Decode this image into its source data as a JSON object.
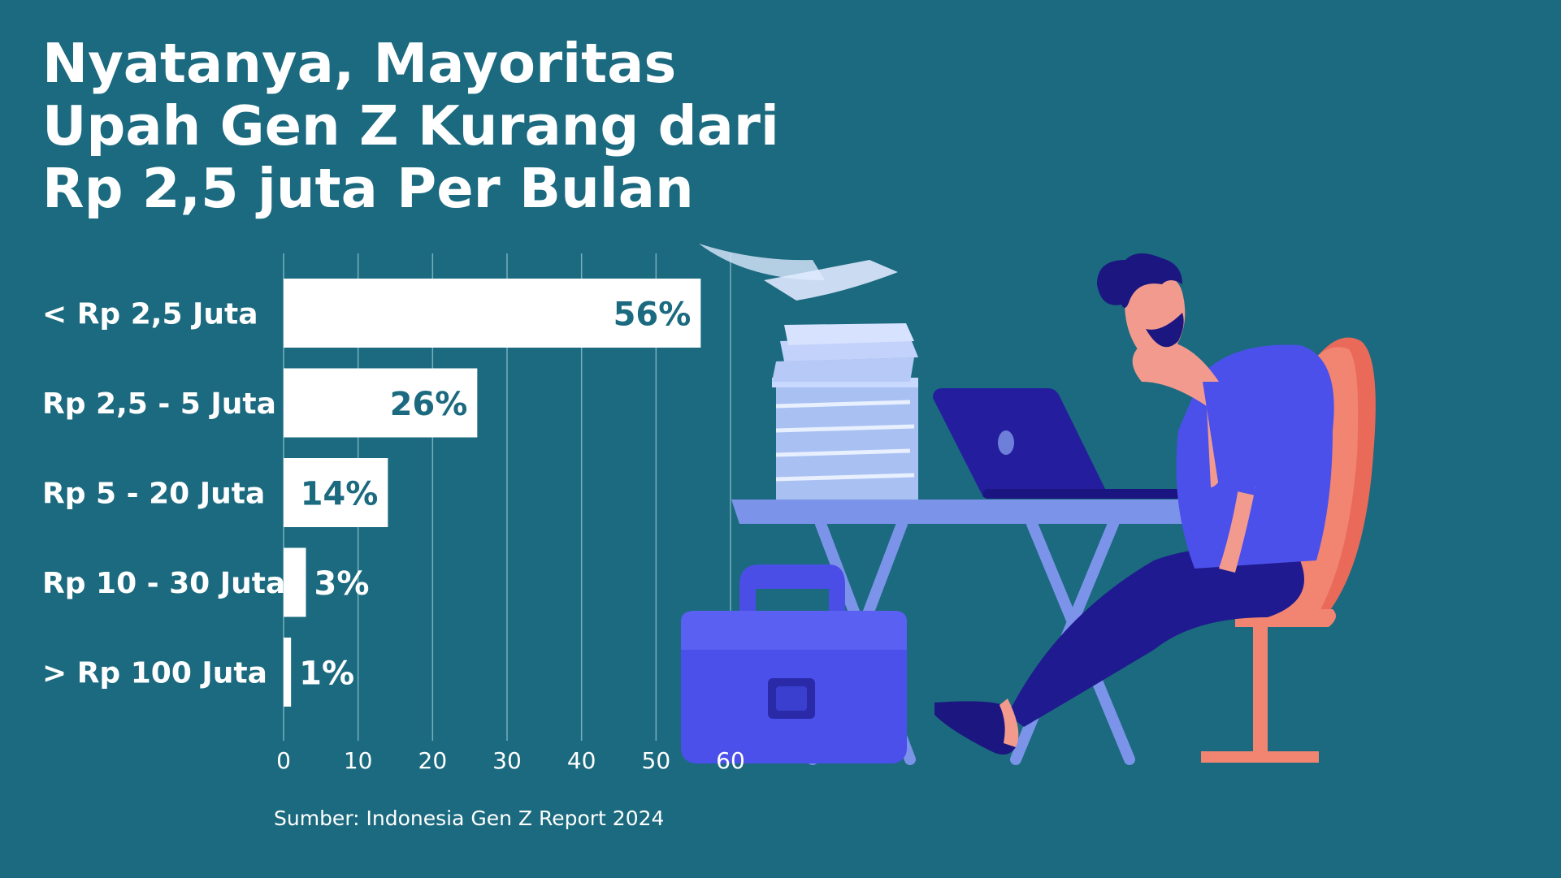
{
  "title_lines": [
    "Nyatanya, Mayoritas",
    "Upah Gen Z Kurang dari",
    "Rp 2,5 juta Per Bulan"
  ],
  "source": "Sumber: Indonesia Gen Z Report 2024",
  "colors": {
    "background": "#1b6a7f",
    "bar": "#ffffff",
    "value_inside": "#1b6a7f",
    "value_outside": "#ffffff",
    "grid": "#8fbfcc"
  },
  "chart_data": {
    "type": "bar",
    "orientation": "horizontal",
    "categories": [
      "< Rp 2,5 Juta",
      "Rp 2,5 - 5 Juta",
      "Rp 5 - 20 Juta",
      "Rp 10 - 30 Juta",
      "> Rp 100 Juta"
    ],
    "values": [
      56,
      26,
      14,
      3,
      1
    ],
    "value_labels": [
      "56%",
      "26%",
      "14%",
      "3%",
      "1%"
    ],
    "xticks": [
      "0",
      "10",
      "20",
      "30",
      "40",
      "50",
      "60"
    ],
    "xlim": [
      0,
      60
    ],
    "grid": true
  },
  "illustration": {
    "description_icon": "stressed-worker-at-desk-illustration"
  }
}
